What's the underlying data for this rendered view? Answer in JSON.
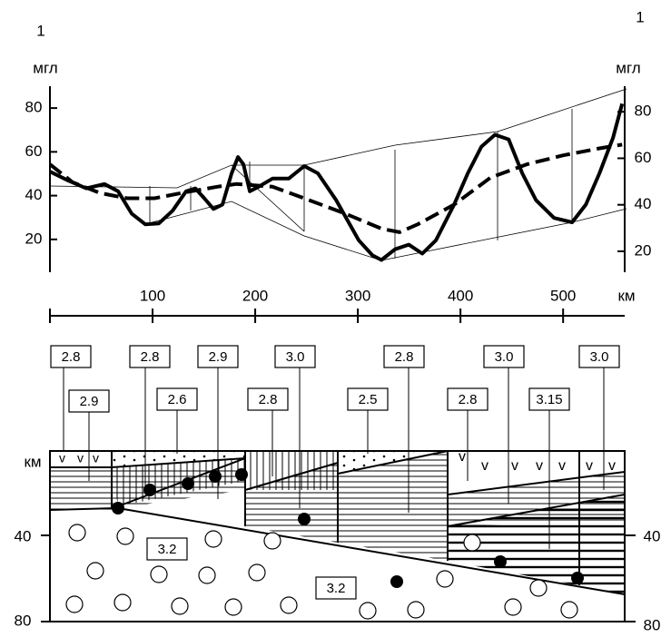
{
  "chart_data": {
    "type": "line",
    "annotations": [
      "1",
      "1"
    ],
    "y_label": "мгл",
    "y2_label": "мгл",
    "x_label": "км",
    "xlim": [
      0,
      560
    ],
    "xticks": [
      100,
      200,
      300,
      400,
      500
    ],
    "ylim": [
      5,
      90
    ],
    "yticks": [
      20,
      40,
      60,
      80
    ],
    "y2lim": [
      11,
      91
    ],
    "y2ticks": [
      20,
      40,
      60,
      80
    ],
    "series": [
      {
        "color": "#000000",
        "x": [
          0,
          17.7,
          35.4,
          53.1,
          66.4,
          79.6,
          92.9,
          106.2,
          119.5,
          132.7,
          141.6,
          150.4,
          159.3,
          168.1,
          177.0,
          183.2,
          188.5,
          194.7,
          203.5,
          216.8,
          232.7,
          247.8,
          261.1,
          278.8,
          300.9,
          314.2,
          323.0,
          336.3,
          349.6,
          362.8,
          376.1,
          393.8,
          407.1,
          420.4,
          433.6,
          446.9,
          460.2,
          473.5,
          491.2,
          508.8,
          522.1,
          535.4,
          548.7,
          557.5
        ],
        "values": [
          51.0,
          46.9,
          43.3,
          45.3,
          42.0,
          31.8,
          26.9,
          27.3,
          33.1,
          42.0,
          43.3,
          38.8,
          33.9,
          35.9,
          50.2,
          57.6,
          54.3,
          42.0,
          44.1,
          47.8,
          47.8,
          53.5,
          50.2,
          38.0,
          19.6,
          12.7,
          10.6,
          15.5,
          17.6,
          13.5,
          19.6,
          35.9,
          50.2,
          62.4,
          67.8,
          65.7,
          50.2,
          38.0,
          29.8,
          27.8,
          35.9,
          50.2,
          66.5,
          82.0
        ]
      },
      {
        "color": "#000000",
        "dashed": true,
        "x": [
          0,
          22.1,
          48.7,
          75.2,
          101.8,
          128.3,
          163.7,
          181.4,
          216.8,
          252.2,
          287.6,
          323.0,
          340.7,
          358.4,
          393.8,
          429.2,
          464.6,
          500.0,
          535.4,
          557.5
        ],
        "values": [
          54.3,
          46.1,
          41.2,
          38.8,
          38.8,
          41.2,
          44.1,
          45.3,
          44.1,
          38.0,
          31.8,
          24.9,
          23.3,
          26.9,
          35.9,
          48.2,
          54.3,
          58.4,
          61.6,
          63.3
        ]
      }
    ]
  },
  "section": {
    "depth_label": "км",
    "left_ticks": [
      "40",
      "80"
    ],
    "right_ticks": [
      "40",
      "80"
    ],
    "densities": [
      "2.8",
      "2.9",
      "2.8",
      "2.6",
      "2.9",
      "3.0",
      "2.8",
      "2.5",
      "2.8",
      "2.8",
      "3.0",
      "3.15",
      "3.0",
      "3.2",
      "3.2"
    ]
  }
}
